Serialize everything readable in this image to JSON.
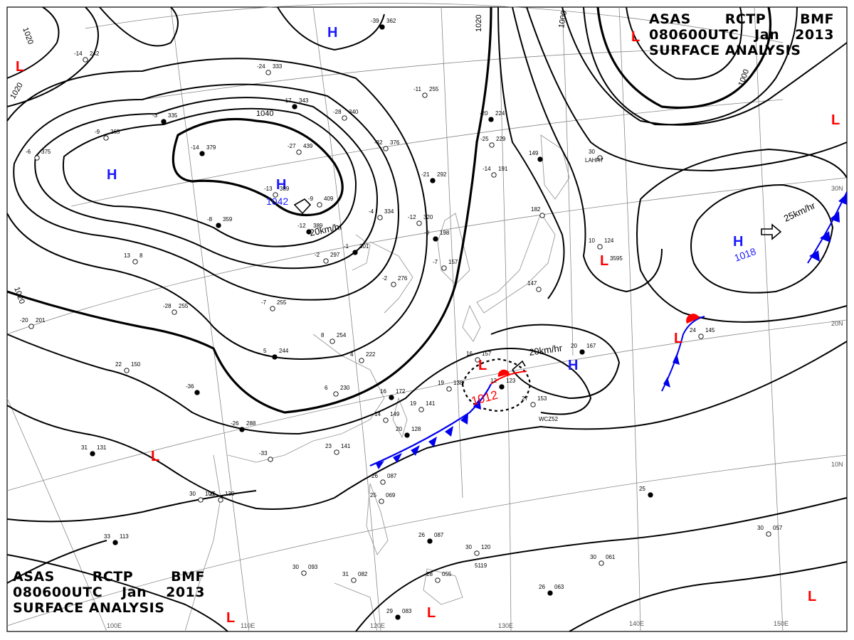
{
  "header": {
    "agency": "ASAS",
    "station": "RCTP",
    "issuer": "BMF",
    "valid_time": "080600UTC",
    "month": "Jan",
    "year": "2013",
    "product": "SURFACE ANALYSIS"
  },
  "colors": {
    "high": "#1a1aff",
    "low": "#ff0000",
    "cold_front": "#0000ee",
    "warm_front": "#ff0000",
    "isobar": "#000000",
    "grid": "#777777"
  },
  "lat_labels": [
    "30N",
    "20N",
    "10N"
  ],
  "lon_labels": [
    "110E",
    "120E",
    "130E",
    "140E",
    "150E",
    "100E"
  ],
  "pressure_centers": [
    {
      "type": "H",
      "value": "1042"
    },
    {
      "type": "H",
      "value": "1018"
    },
    {
      "type": "L",
      "value": "1012"
    },
    {
      "type": "H",
      "value": ""
    },
    {
      "type": "H",
      "value": ""
    },
    {
      "type": "H",
      "value": ""
    },
    {
      "type": "L",
      "value": ""
    },
    {
      "type": "L",
      "value": ""
    },
    {
      "type": "L",
      "value": ""
    },
    {
      "type": "L",
      "value": ""
    },
    {
      "type": "L",
      "value": ""
    },
    {
      "type": "L",
      "value": ""
    },
    {
      "type": "L",
      "value": ""
    },
    {
      "type": "L",
      "value": ""
    }
  ],
  "isobar_labels": [
    "1040",
    "1020",
    "1020",
    "1020",
    "1020",
    "1000",
    "1000"
  ],
  "movements": [
    "20km/hr",
    "20km/hr",
    "25km/hr"
  ],
  "station_plots": [
    {
      "t": "-39",
      "p": "362"
    },
    {
      "t": "-14",
      "p": "242"
    },
    {
      "t": "-24",
      "p": "333"
    },
    {
      "t": "-17",
      "p": "343"
    },
    {
      "t": "-28",
      "p": "340"
    },
    {
      "t": "-11",
      "p": "255"
    },
    {
      "t": "-20",
      "p": "224"
    },
    {
      "t": "-25",
      "p": "229"
    },
    {
      "t": "-32",
      "p": "376"
    },
    {
      "t": "-14",
      "p": "379"
    },
    {
      "t": "-27",
      "p": "439"
    },
    {
      "t": "-13",
      "p": "389"
    },
    {
      "t": "-21",
      "p": "292"
    },
    {
      "t": "-9",
      "p": "409"
    },
    {
      "t": "-14",
      "p": "191"
    },
    {
      "t": "-12",
      "p": "389"
    },
    {
      "t": "-4",
      "p": "334"
    },
    {
      "t": "-12",
      "p": "320"
    },
    {
      "t": "-0",
      "p": "198"
    },
    {
      "t": "-7",
      "p": "157"
    },
    {
      "t": "-2",
      "p": "297"
    },
    {
      "t": "-1",
      "p": "301"
    },
    {
      "t": "-2",
      "p": "276"
    },
    {
      "t": "-7",
      "p": "255"
    },
    {
      "t": "-8",
      "p": "359"
    },
    {
      "t": "-6",
      "p": "375"
    },
    {
      "t": "-9",
      "p": "265"
    },
    {
      "t": "-3",
      "p": "335"
    },
    {
      "t": "13",
      "p": "8"
    },
    {
      "t": "8",
      "p": "254"
    },
    {
      "t": "5",
      "p": "244"
    },
    {
      "t": "6",
      "p": "230"
    },
    {
      "t": "4",
      "p": "222"
    },
    {
      "t": "16",
      "p": "172"
    },
    {
      "t": "19",
      "p": "138"
    },
    {
      "t": "16",
      "p": "157"
    },
    {
      "t": "12",
      "p": "123"
    },
    {
      "t": "19",
      "p": "141"
    },
    {
      "t": "14",
      "p": "149"
    },
    {
      "t": "20",
      "p": "128"
    },
    {
      "t": "23",
      "p": "141"
    },
    {
      "t": "22",
      "p": "150"
    },
    {
      "t": "31",
      "p": "131"
    },
    {
      "t": "26",
      "p": "130"
    },
    {
      "t": "30",
      "p": "100"
    },
    {
      "t": "33",
      "p": "113"
    },
    {
      "t": "30",
      "p": "093"
    },
    {
      "t": "31",
      "p": "082"
    },
    {
      "t": "29",
      "p": "083"
    },
    {
      "t": "26",
      "p": "087"
    },
    {
      "t": "25",
      "p": "069"
    },
    {
      "t": "26",
      "p": "087"
    },
    {
      "t": "30",
      "p": "120"
    },
    {
      "t": "28",
      "p": "055"
    },
    {
      "t": "26",
      "p": "063"
    },
    {
      "t": "30",
      "p": "061"
    },
    {
      "t": "30",
      "p": "057"
    },
    {
      "t": "25",
      "p": ""
    },
    {
      "t": "27",
      "p": "153"
    },
    {
      "t": "24",
      "p": "145"
    },
    {
      "t": "20",
      "p": "167"
    },
    {
      "t": "10",
      "p": "124"
    },
    {
      "t": "30",
      "p": ""
    },
    {
      "t": "149",
      "p": ""
    },
    {
      "t": "147",
      "p": ""
    },
    {
      "t": "182",
      "p": ""
    },
    {
      "t": "-36",
      "p": ""
    },
    {
      "t": "-28",
      "p": "255"
    },
    {
      "t": "-20",
      "p": "201"
    },
    {
      "t": "-26",
      "p": "288"
    },
    {
      "t": "-33",
      "p": ""
    }
  ],
  "station_ids": [
    "LAHR7",
    "3595",
    "WCZ52",
    "5119"
  ]
}
